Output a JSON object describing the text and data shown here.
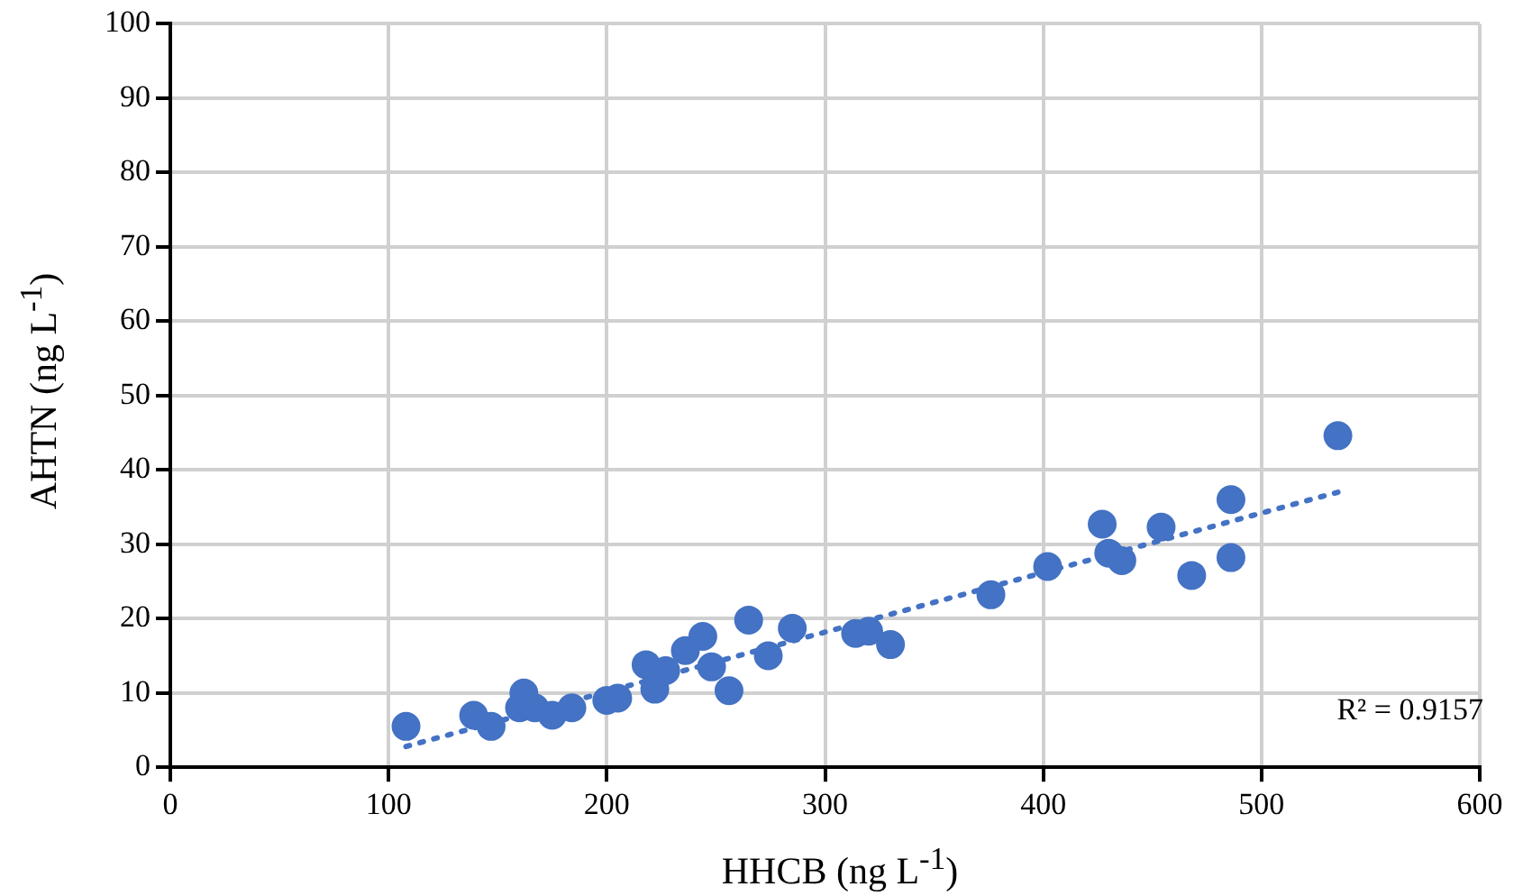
{
  "chart_data": {
    "type": "scatter",
    "xlabel": "HHCB (ng L$^{-1}$)",
    "ylabel": "AHTN (ng L$^{-1}$)",
    "xlim": [
      0,
      600
    ],
    "xticks": [
      0,
      100,
      200,
      300,
      400,
      500,
      600
    ],
    "ylim": [
      0,
      100
    ],
    "yticks": [
      0,
      10,
      20,
      30,
      40,
      50,
      60,
      70,
      80,
      90,
      100
    ],
    "grid": true,
    "legend": false,
    "marker": "circle",
    "series": [
      {
        "type": "scatter",
        "color": "#4472c4",
        "x": [
          108,
          139,
          147,
          160,
          162,
          167,
          175,
          184,
          200,
          205,
          218,
          222,
          227,
          236,
          244,
          248,
          256,
          265,
          274,
          285,
          314,
          320,
          330,
          376,
          402,
          427,
          430,
          436,
          454,
          468,
          486,
          486,
          535
        ],
        "values": [
          5.5,
          7,
          5.5,
          8,
          10,
          8,
          7,
          8,
          9,
          9.3,
          13.8,
          10.5,
          13,
          15.7,
          17.6,
          13.5,
          10.3,
          19.8,
          15,
          18.7,
          18,
          18.3,
          16.5,
          23.2,
          27,
          32.7,
          28.8,
          27.8,
          32.3,
          25.8,
          36,
          28.2,
          44.6
        ]
      },
      {
        "type": "line",
        "color": "#4472c4",
        "line_style": "dotted",
        "marker": "none",
        "x": [
          108,
          535
        ],
        "values": [
          2.8,
          37
        ]
      }
    ],
    "annotations": [
      "R² = 0.9157"
    ]
  }
}
